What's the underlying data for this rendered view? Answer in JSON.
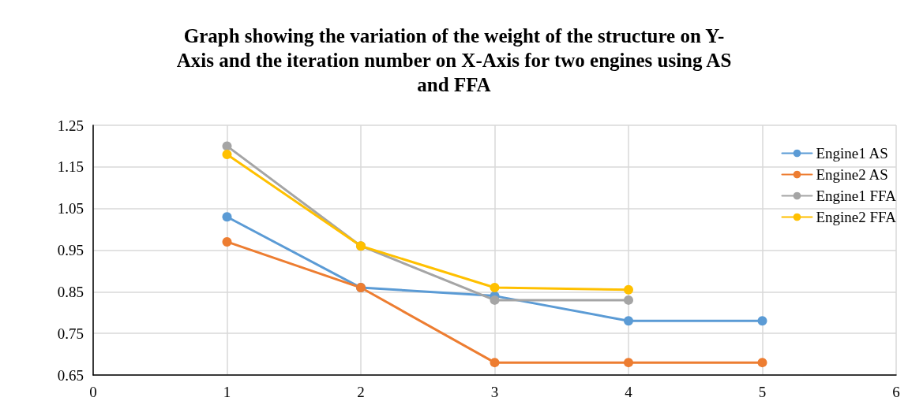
{
  "chart_data": {
    "type": "line",
    "title": "Graph showing the variation of the weight of the structure on Y-\nAxis and the iteration number on X-Axis for two engines using AS\nand FFA",
    "series": [
      {
        "name": "Engine1 AS",
        "color": "#5b9bd5",
        "x": [
          1,
          2,
          3,
          4,
          5
        ],
        "values": [
          1.03,
          0.86,
          0.84,
          0.78,
          0.78
        ]
      },
      {
        "name": "Engine2 AS",
        "color": "#ed7d31",
        "x": [
          1,
          2,
          3,
          4,
          5
        ],
        "values": [
          0.97,
          0.86,
          0.68,
          0.68,
          0.68
        ]
      },
      {
        "name": "Engine1 FFA",
        "color": "#a5a5a5",
        "x": [
          1,
          2,
          3,
          4
        ],
        "values": [
          1.2,
          0.96,
          0.83,
          0.83
        ]
      },
      {
        "name": "Engine2 FFA",
        "color": "#ffc000",
        "x": [
          1,
          2,
          3,
          4
        ],
        "values": [
          1.18,
          0.96,
          0.86,
          0.855
        ]
      }
    ],
    "xlim": [
      0,
      6
    ],
    "xticks": [
      0,
      1,
      2,
      3,
      4,
      5,
      6
    ],
    "ylim": [
      0.65,
      1.25
    ],
    "yticks": [
      0.65,
      0.75,
      0.85,
      0.95,
      1.05,
      1.15,
      1.25
    ],
    "grid": true,
    "legend": "top right",
    "marker": "circle",
    "line_style": "solid"
  }
}
